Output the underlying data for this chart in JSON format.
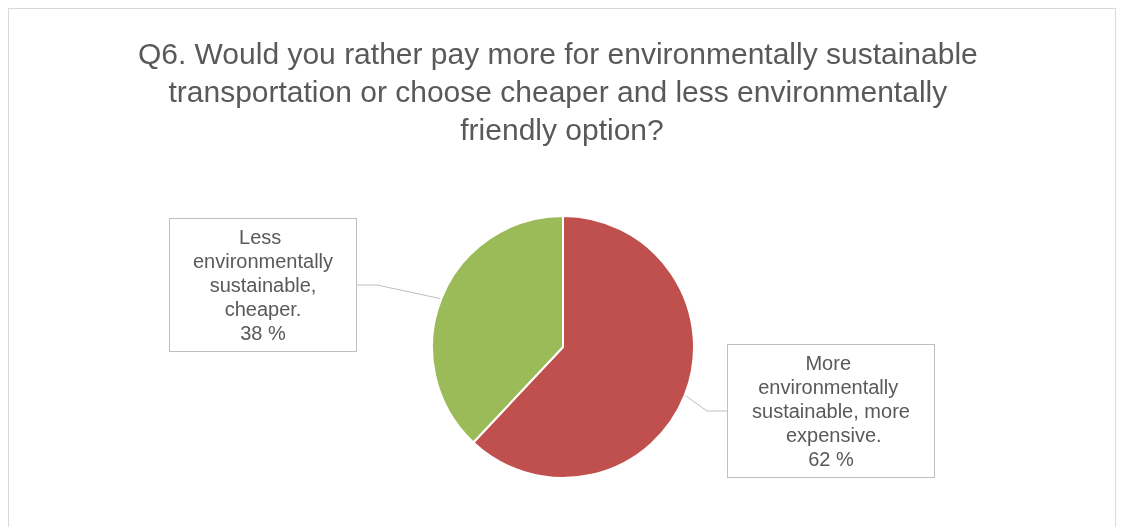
{
  "chart_data": {
    "type": "pie",
    "title": "Q6. Would you rather pay more for environmentally sustainable transportation or choose cheaper and less environmentally friendly option?",
    "categories": [
      "More environmentally sustainable, more expensive.",
      "Less environmentally sustainable, cheaper."
    ],
    "values": [
      62,
      38
    ],
    "colors": [
      "#c0504d",
      "#9bbb59"
    ],
    "value_labels": [
      "62 %",
      "38 %"
    ],
    "legend": false
  }
}
